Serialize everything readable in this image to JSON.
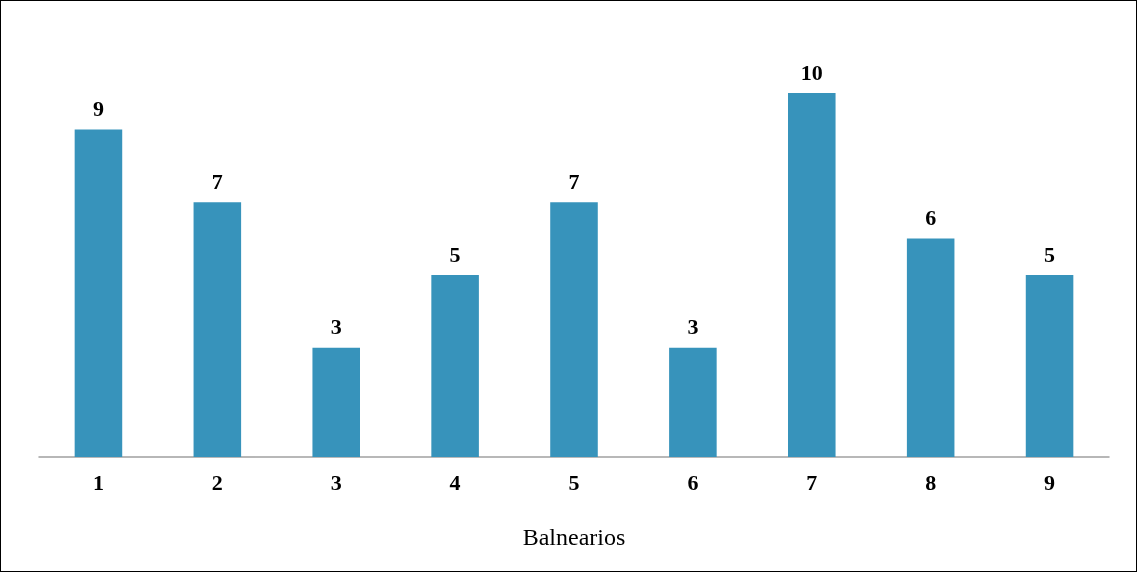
{
  "chart_data": {
    "type": "bar",
    "xlabel": "Balnearios",
    "categories": [
      "1",
      "2",
      "3",
      "4",
      "5",
      "6",
      "7",
      "8",
      "9"
    ],
    "values": [
      9,
      7,
      3,
      5,
      7,
      3,
      10,
      6,
      5
    ],
    "color": "#3793bb",
    "data_labels": true,
    "grid": false
  }
}
